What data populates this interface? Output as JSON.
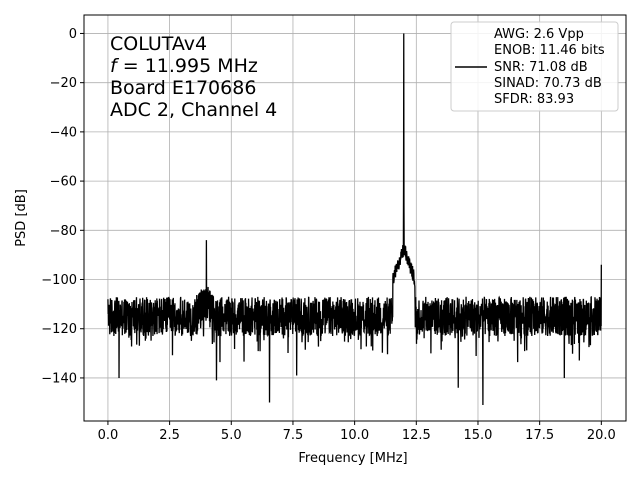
{
  "chart_data": {
    "type": "line",
    "title": "",
    "xlabel": "Frequency [MHz]",
    "ylabel": "PSD [dB]",
    "xlim": [
      -0.97,
      21.0
    ],
    "ylim": [
      -157.5,
      7.5
    ],
    "xticks": [
      0.0,
      2.5,
      5.0,
      7.5,
      10.0,
      12.5,
      15.0,
      17.5,
      20.0
    ],
    "xtick_labels": [
      "0.0",
      "2.5",
      "5.0",
      "7.5",
      "10.0",
      "12.5",
      "15.0",
      "17.5",
      "20.0"
    ],
    "yticks": [
      0,
      -20,
      -40,
      -60,
      -80,
      -100,
      -120,
      -140
    ],
    "ytick_labels": [
      "0",
      "−20",
      "−40",
      "−60",
      "−80",
      "−100",
      "−120",
      "−140"
    ],
    "grid": true,
    "legend_position": "top-right",
    "annotation_lines": [
      "COLUTAv4",
      "= 11.995 MHz",
      "Board E170686",
      "ADC 2, Channel 4"
    ],
    "annotation_italic_prefix": "f",
    "legend_lines": [
      "AWG: 2.6 Vpp",
      "ENOB: 11.46 bits",
      "SNR: 71.08 dB",
      "SINAD: 70.73 dB",
      "SFDR: 83.93"
    ],
    "series": [
      {
        "color": "#000000",
        "noise_floor_db": -115,
        "fundamental": {
          "x": 11.995,
          "y": 0
        },
        "spurs": [
          {
            "x": 3.99,
            "y": -84
          },
          {
            "x": 20.0,
            "y": -94
          },
          {
            "x": 12.0,
            "y": -86
          }
        ],
        "notable_dips": [
          {
            "x": 0.45,
            "y": -140
          },
          {
            "x": 4.4,
            "y": -141
          },
          {
            "x": 6.55,
            "y": -150
          },
          {
            "x": 7.65,
            "y": -139
          },
          {
            "x": 14.2,
            "y": -144
          },
          {
            "x": 15.2,
            "y": -151
          },
          {
            "x": 18.5,
            "y": -140
          }
        ],
        "x_range": [
          0.0,
          20.0
        ]
      }
    ]
  }
}
